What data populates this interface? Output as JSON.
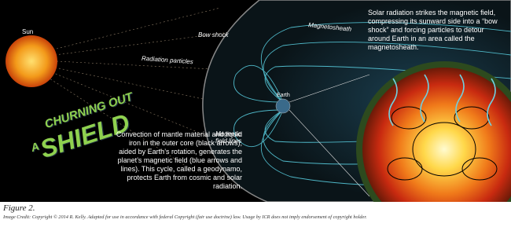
{
  "labels": {
    "sun": "Sun",
    "radiation": "Radiation particles",
    "bow_shock": "Bow shock",
    "magnetosheath": "Magnetosheath",
    "earth": "Earth",
    "field_lines": "Magnetic field lines"
  },
  "title": {
    "line1": "CHURNING OUT",
    "line2": "A",
    "line3": "SHIELD"
  },
  "paragraphs": {
    "solar": "Solar radiation strikes the magnetic field, compressing its sunward side into a “bow shock” and forcing particles to detour around Earth in an area called the magnetosheath.",
    "convection": "Convection of mantle material and liquid iron in the outer core (black arrows), aided by Earth’s rotation, generates the planet’s magnetic field (blue arrows and lines). This cycle, called a geodynamo, protects Earth from cosmic and solar radiation."
  },
  "caption": {
    "figure": "Figure 2.",
    "credit": "Image Credit: Copyright © 2014 R. Kelly. Adapted for use in accordance with federal Copyright (fair use doctrine) law. Usage by ICR does not imply endorsement of copyright holder."
  }
}
